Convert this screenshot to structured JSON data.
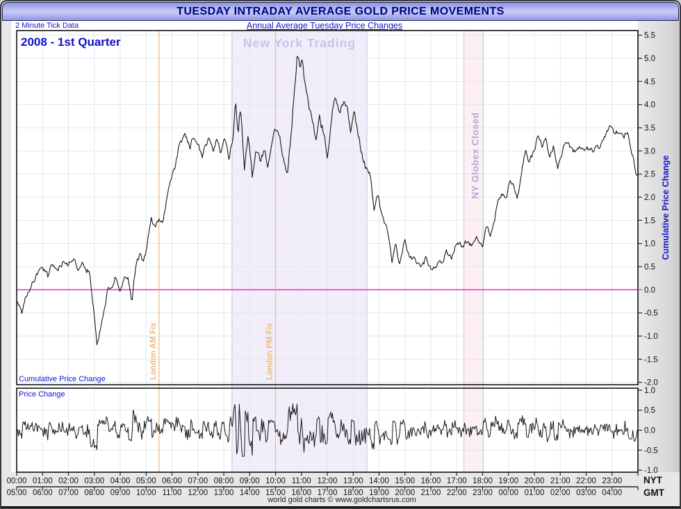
{
  "window": {
    "title": "TUESDAY INTRADAY AVERAGE GOLD PRICE MOVEMENTS"
  },
  "header": {
    "left_note": "2 Minute Tick Data",
    "subtitle": "Annual Average Tuesday Price Changes"
  },
  "chart": {
    "period_label": "2008 - 1st Quarter",
    "top_panel_label": "Cumulative Price Change",
    "bottom_panel_label": "Price Change",
    "right_axis_label": "Cumulative Price Change",
    "timezone_primary": "NYT",
    "timezone_secondary": "GMT",
    "footer": "world gold charts © www.goldchartsrus.com"
  },
  "colors": {
    "grid": "#dde8f3",
    "zero_line": "#ea1fc8",
    "fix_line": "#f2b87c",
    "curve": "#161616",
    "text_blue": "#1414cc",
    "title_navy": "#000080",
    "axis": "#222222"
  },
  "chart_data": {
    "type": "line",
    "title": "TUESDAY INTRADAY AVERAGE GOLD PRICE MOVEMENTS",
    "subtitle": "Annual Average Tuesday Price Changes",
    "x_unit": "hours NYT",
    "x_range": [
      0,
      24
    ],
    "sample_interval_minutes": 2,
    "x_ticks_nyt": [
      "00:00",
      "01:00",
      "02:00",
      "03:00",
      "04:00",
      "05:00",
      "06:00",
      "07:00",
      "08:00",
      "09:00",
      "10:00",
      "11:00",
      "12:00",
      "13:00",
      "14:00",
      "15:00",
      "16:00",
      "17:00",
      "18:00",
      "19:00",
      "20:00",
      "21:00",
      "22:00",
      "23:00"
    ],
    "x_ticks_gmt": [
      "05:00",
      "06:00",
      "07:00",
      "08:00",
      "09:00",
      "10:00",
      "11:00",
      "12:00",
      "13:00",
      "14:00",
      "15:00",
      "16:00",
      "17:00",
      "18:00",
      "19:00",
      "20:00",
      "21:00",
      "22:00",
      "23:00",
      "00:00",
      "01:00",
      "02:00",
      "03:00",
      "04:00"
    ],
    "panels": [
      {
        "name": "cumulative_price_change",
        "ylim": [
          -2.05,
          5.6
        ],
        "yticks": [
          5.5,
          5.0,
          4.5,
          4.0,
          3.5,
          3.0,
          2.5,
          2.0,
          1.5,
          1.0,
          0.5,
          0.0,
          -0.5,
          -1.0,
          -1.5,
          -2.0
        ],
        "zero_line": true
      },
      {
        "name": "price_change",
        "ylim": [
          -1.05,
          1.05
        ],
        "yticks": [
          1.0,
          0.5,
          0.0,
          -0.5,
          -1.0
        ],
        "zero_line": false
      }
    ],
    "bands": [
      {
        "label": "New York Trading",
        "start_hour": 8.32,
        "end_hour": 13.53,
        "fill": "#f1eef9",
        "border": "#c5bfe8",
        "label_color": "#c8c2ee"
      },
      {
        "label": "NY Globex Closed",
        "start_hour": 17.28,
        "end_hour": 18.03,
        "fill": "#fdeff2",
        "border": "#c9c2ea",
        "label_color": "#b2aade"
      }
    ],
    "vlines": [
      {
        "label": "London AM Fix",
        "hour": 5.5,
        "color": "#f2b87c"
      },
      {
        "label": "London PM Fix",
        "hour": 10.0,
        "color": "#f2b87c"
      }
    ],
    "cumulative_keypoints": {
      "hours": [
        0,
        0.2,
        0.35,
        0.6,
        0.8,
        1.0,
        1.2,
        1.4,
        1.6,
        1.8,
        2.0,
        2.2,
        2.4,
        2.55,
        2.7,
        2.8,
        2.95,
        3.1,
        3.25,
        3.4,
        3.55,
        3.7,
        3.85,
        4.0,
        4.15,
        4.3,
        4.45,
        4.6,
        4.75,
        4.9,
        5.05,
        5.2,
        5.35,
        5.5,
        5.65,
        5.8,
        5.95,
        6.1,
        6.3,
        6.5,
        6.7,
        6.85,
        7.0,
        7.15,
        7.3,
        7.45,
        7.6,
        7.75,
        7.9,
        8.05,
        8.2,
        8.35,
        8.45,
        8.55,
        8.65,
        8.8,
        8.95,
        9.1,
        9.25,
        9.4,
        9.55,
        9.7,
        9.85,
        10.0,
        10.15,
        10.3,
        10.45,
        10.6,
        10.75,
        10.85,
        10.95,
        11.05,
        11.15,
        11.3,
        11.45,
        11.55,
        11.7,
        11.85,
        12.0,
        12.15,
        12.3,
        12.45,
        12.6,
        12.75,
        12.9,
        13.05,
        13.2,
        13.35,
        13.5,
        13.65,
        13.8,
        13.95,
        14.1,
        14.3,
        14.5,
        14.65,
        14.8,
        15.0,
        15.2,
        15.4,
        15.6,
        15.8,
        16.0,
        16.2,
        16.4,
        16.6,
        16.8,
        17.0,
        17.2,
        17.4,
        17.6,
        17.8,
        18.0,
        18.15,
        18.3,
        18.45,
        18.6,
        18.75,
        18.9,
        19.05,
        19.2,
        19.35,
        19.5,
        19.65,
        19.8,
        20.0,
        20.15,
        20.3,
        20.45,
        20.6,
        20.75,
        20.9,
        21.1,
        21.3,
        21.5,
        21.7,
        21.9,
        22.1,
        22.3,
        22.5,
        22.7,
        22.9,
        23.1,
        23.3,
        23.45,
        23.6,
        23.7,
        23.8,
        23.9,
        24.0
      ],
      "values": [
        -0.25,
        -0.5,
        -0.15,
        0.15,
        0.35,
        0.5,
        0.3,
        0.55,
        0.45,
        0.6,
        0.55,
        0.65,
        0.4,
        0.55,
        0.35,
        0.45,
        -0.3,
        -1.2,
        -0.8,
        -0.35,
        0.05,
        0.1,
        0.3,
        -0.05,
        0.2,
        0.3,
        -0.25,
        0.5,
        0.75,
        0.6,
        1.0,
        1.55,
        1.3,
        1.55,
        1.45,
        2.0,
        2.4,
        2.6,
        3.15,
        3.35,
        3.1,
        3.35,
        3.2,
        2.85,
        3.1,
        3.3,
        3.05,
        3.25,
        2.95,
        3.3,
        2.8,
        3.3,
        4.1,
        3.25,
        4.0,
        2.7,
        3.35,
        2.45,
        3.1,
        2.8,
        3.0,
        2.75,
        3.2,
        3.45,
        3.25,
        2.9,
        2.4,
        3.4,
        4.4,
        5.1,
        4.8,
        5.0,
        4.35,
        3.95,
        3.6,
        3.2,
        3.75,
        3.4,
        2.9,
        3.6,
        4.2,
        3.8,
        4.0,
        4.05,
        3.5,
        3.8,
        3.3,
        2.95,
        2.6,
        2.55,
        1.75,
        2.1,
        1.6,
        1.35,
        0.6,
        0.95,
        0.55,
        1.05,
        0.7,
        0.65,
        0.5,
        0.65,
        0.45,
        0.55,
        0.6,
        0.8,
        0.65,
        1.0,
        0.95,
        1.05,
        0.95,
        1.1,
        0.95,
        1.35,
        1.2,
        1.5,
        1.95,
        2.1,
        1.95,
        2.3,
        2.25,
        2.0,
        2.55,
        3.0,
        2.7,
        3.05,
        3.35,
        3.1,
        3.25,
        2.85,
        3.1,
        2.65,
        3.05,
        3.15,
        2.95,
        3.1,
        3.0,
        3.05,
        3.0,
        3.1,
        3.3,
        3.5,
        3.35,
        3.45,
        3.3,
        3.45,
        3.1,
        2.9,
        2.5,
        2.45
      ]
    },
    "noise": {
      "seed": 20080101,
      "amplitude": 0.1,
      "ny_extra": 0.05,
      "pc_scale": 2.1,
      "pc_clamp": 0.66
    }
  }
}
